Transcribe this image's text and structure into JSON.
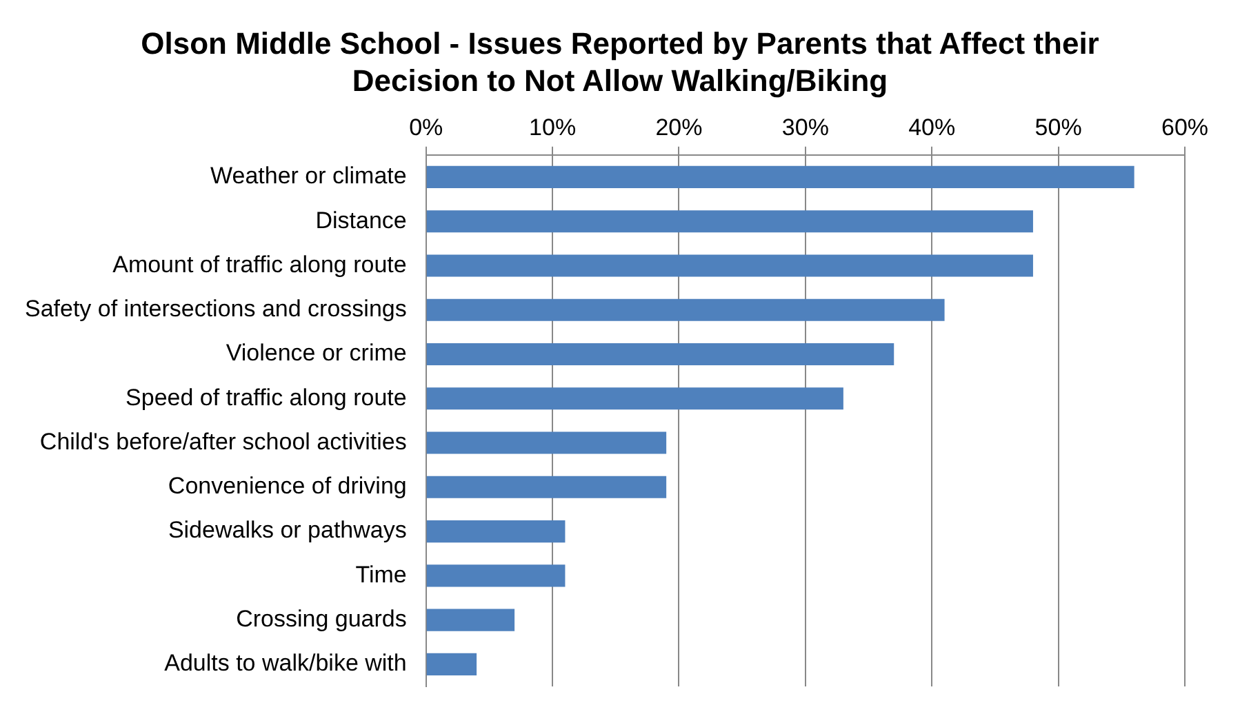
{
  "chart_data": {
    "type": "bar",
    "orientation": "horizontal",
    "title": "Olson Middle School - Issues Reported by Parents that Affect their Decision to Not Allow Walking/Biking",
    "categories": [
      "Weather or climate",
      "Distance",
      "Amount of traffic along route",
      "Safety of intersections and crossings",
      "Violence or crime",
      "Speed of traffic along route",
      "Child's before/after school activities",
      "Convenience of driving",
      "Sidewalks or pathways",
      "Time",
      "Crossing guards",
      "Adults to walk/bike with"
    ],
    "values": [
      56,
      48,
      48,
      41,
      37,
      33,
      19,
      19,
      11,
      11,
      7,
      4
    ],
    "color": "#4f81bd",
    "xlim": [
      0,
      60
    ],
    "xticks": [
      {
        "value": 0,
        "label": "0%"
      },
      {
        "value": 10,
        "label": "10%"
      },
      {
        "value": 20,
        "label": "20%"
      },
      {
        "value": 30,
        "label": "30%"
      },
      {
        "value": 40,
        "label": "40%"
      },
      {
        "value": 50,
        "label": "50%"
      },
      {
        "value": 60,
        "label": "60%"
      }
    ],
    "grid": "x"
  }
}
